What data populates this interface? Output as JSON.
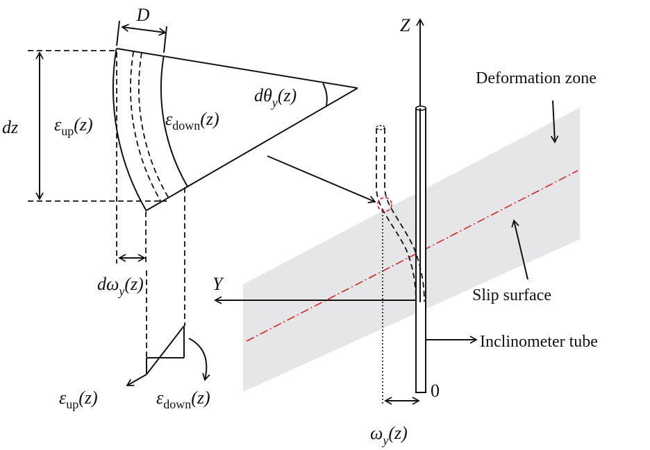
{
  "labels": {
    "width": "D",
    "height": "dz",
    "strain_up": {
      "symbol": "ε",
      "subscript": "up",
      "argument": "(z)"
    },
    "strain_down": {
      "symbol": "ε",
      "subscript": "down",
      "argument": "(z)"
    },
    "rotation": {
      "symbol": "dθ",
      "subscript": "y",
      "argument": "(z)"
    },
    "axis_z": "Z",
    "axis_y": "Y",
    "deformation_zone": "Deformation zone",
    "slip_surface": "Slip surface",
    "inclinometer_tube": "Inclinometer tube",
    "increment": {
      "symbol": "dω",
      "subscript": "y",
      "argument": "(z)"
    },
    "strain_up_small": {
      "symbol": "ε",
      "subscript": "up",
      "argument": "(z)"
    },
    "strain_down_small": {
      "symbol": "ε",
      "subscript": "down",
      "argument": "(z)"
    },
    "origin": "0",
    "displacement": {
      "symbol": "ω",
      "subscript": "y",
      "argument": "(z)"
    }
  }
}
